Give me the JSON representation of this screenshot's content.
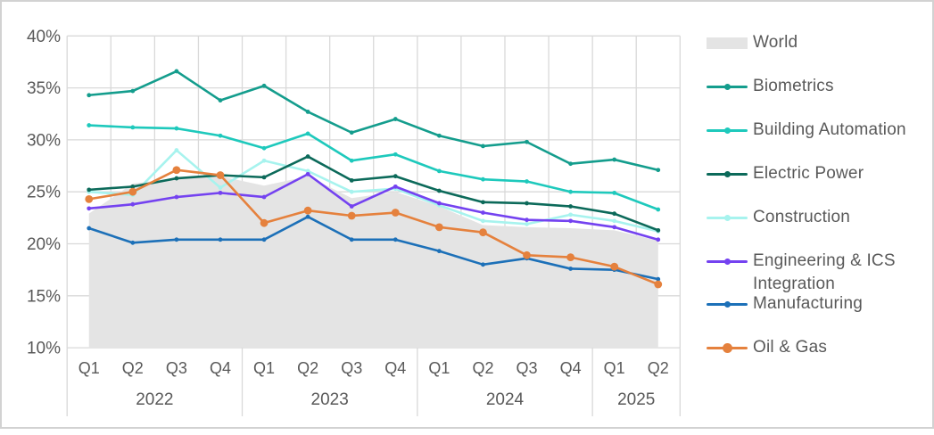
{
  "chart_data": {
    "type": "area+line",
    "title": "",
    "unit": "%",
    "y_axis": {
      "min": 10,
      "max": 40,
      "step": 5,
      "tick_labels": [
        "40%",
        "35%",
        "30%",
        "25%",
        "20%",
        "15%",
        "10%"
      ]
    },
    "x_axis": {
      "quarter_labels": [
        "Q1",
        "Q2",
        "Q3",
        "Q4",
        "Q1",
        "Q2",
        "Q3",
        "Q4",
        "Q1",
        "Q2",
        "Q3",
        "Q4",
        "Q1",
        "Q2"
      ],
      "year_groups": [
        {
          "label": "2022",
          "span": 4
        },
        {
          "label": "2023",
          "span": 4
        },
        {
          "label": "2024",
          "span": 4
        },
        {
          "label": "2025",
          "span": 2
        }
      ]
    },
    "grid": true,
    "legend_position": "right",
    "series": [
      {
        "name": "World",
        "type": "area",
        "color": "#e4e4e4",
        "values": [
          22.9,
          25.8,
          26.3,
          26.5,
          25.6,
          26.5,
          24.4,
          25.0,
          23.6,
          21.8,
          21.6,
          21.5,
          21.3,
          20.3
        ]
      },
      {
        "name": "Construction",
        "type": "line",
        "color": "#a7f3ee",
        "values": [
          25.0,
          24.7,
          29.0,
          25.4,
          28.0,
          27.0,
          25.0,
          25.3,
          23.7,
          22.2,
          21.9,
          22.8,
          22.2,
          21.2
        ]
      },
      {
        "name": "Biometrics",
        "type": "line",
        "color": "#149d8d",
        "values": [
          34.3,
          34.7,
          36.6,
          33.8,
          35.2,
          32.7,
          30.7,
          32.0,
          30.4,
          29.4,
          29.8,
          27.7,
          28.1,
          27.1
        ]
      },
      {
        "name": "Building Automation",
        "type": "line",
        "color": "#1ec9bc",
        "values": [
          31.4,
          31.2,
          31.1,
          30.4,
          29.2,
          30.6,
          28.0,
          28.6,
          27.0,
          26.2,
          26.0,
          25.0,
          24.9,
          23.3
        ]
      },
      {
        "name": "Electric Power",
        "type": "line",
        "color": "#0c6a5a",
        "values": [
          25.2,
          25.5,
          26.3,
          26.6,
          26.4,
          28.4,
          26.1,
          26.5,
          25.1,
          24.0,
          23.9,
          23.6,
          22.9,
          21.3
        ]
      },
      {
        "name": "Engineering & ICS Integration",
        "type": "line",
        "color": "#7442f0",
        "values": [
          23.4,
          23.8,
          24.5,
          24.9,
          24.5,
          26.7,
          23.6,
          25.5,
          23.9,
          23.0,
          22.3,
          22.2,
          21.6,
          20.4
        ]
      },
      {
        "name": "Manufacturing",
        "type": "line",
        "color": "#1c70b8",
        "values": [
          21.5,
          20.1,
          20.4,
          20.4,
          20.4,
          22.6,
          20.4,
          20.4,
          19.3,
          18.0,
          18.6,
          17.6,
          17.5,
          16.6
        ]
      },
      {
        "name": "Oil & Gas",
        "type": "line",
        "color": "#e5813d",
        "marker": "big",
        "values": [
          24.3,
          25.0,
          27.1,
          26.6,
          22.0,
          23.2,
          22.7,
          23.0,
          21.6,
          21.1,
          18.9,
          18.7,
          17.8,
          16.1
        ]
      }
    ],
    "style": {
      "grid_color": "#d9d9d9",
      "text_color": "#595959"
    }
  },
  "legend": {
    "items": [
      {
        "label": "World",
        "color": "#e4e4e4",
        "swatch": "area"
      },
      {
        "label": "Biometrics",
        "color": "#149d8d",
        "swatch": "line"
      },
      {
        "label": "Building Automation",
        "color": "#1ec9bc",
        "swatch": "line"
      },
      {
        "label": "Electric Power",
        "color": "#0c6a5a",
        "swatch": "line"
      },
      {
        "label": "Construction",
        "color": "#a7f3ee",
        "swatch": "line"
      },
      {
        "label": "Engineering & ICS Integration",
        "color": "#7442f0",
        "swatch": "line"
      },
      {
        "label": "Manufacturing",
        "color": "#1c70b8",
        "swatch": "line"
      },
      {
        "label": "Oil & Gas",
        "color": "#e5813d",
        "swatch": "line-big-dot"
      }
    ]
  }
}
